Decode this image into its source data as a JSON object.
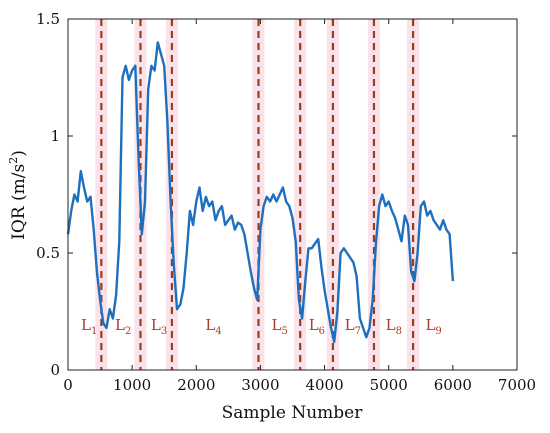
{
  "chart_data": {
    "type": "line",
    "xlabel": "Sample Number",
    "ylabel": "IQR (m/s",
    "ylabel_sup": "2",
    "ylabel_close": ")",
    "xlim": [
      0,
      7000
    ],
    "ylim": [
      0,
      1.5
    ],
    "xticks": [
      0,
      1000,
      2000,
      3000,
      4000,
      5000,
      6000,
      7000
    ],
    "xtick_labels": [
      "0",
      "1000",
      "2000",
      "3000",
      "4000",
      "5000",
      "6000",
      "7000"
    ],
    "yticks": [
      0,
      0.5,
      1,
      1.5
    ],
    "ytick_labels": [
      "0",
      "0.5",
      "1",
      "1.5"
    ],
    "grid": false,
    "line_color": "#1f6fbf",
    "divider_color": "#9e3b1c",
    "divider_band_color": "#f6d6e0",
    "label_color": "#b23a2a",
    "dividers": [
      520,
      1130,
      1620,
      2970,
      3620,
      4130,
      4770,
      5380
    ],
    "segment_labels": [
      {
        "text": "L",
        "sub": "1",
        "x": 330
      },
      {
        "text": "L",
        "sub": "2",
        "x": 860
      },
      {
        "text": "L",
        "sub": "3",
        "x": 1420
      },
      {
        "text": "L",
        "sub": "4",
        "x": 2270
      },
      {
        "text": "L",
        "sub": "5",
        "x": 3300
      },
      {
        "text": "L",
        "sub": "6",
        "x": 3880
      },
      {
        "text": "L",
        "sub": "7",
        "x": 4440
      },
      {
        "text": "L",
        "sub": "8",
        "x": 5080
      },
      {
        "text": "L",
        "sub": "9",
        "x": 5700
      }
    ],
    "segment_label_y": 0.17,
    "series": [
      {
        "x": [
          0,
          50,
          100,
          150,
          200,
          250,
          300,
          350,
          400,
          450,
          500,
          550,
          600,
          650,
          700,
          750,
          800,
          850,
          900,
          950,
          1000,
          1050,
          1100,
          1150,
          1200,
          1250,
          1300,
          1350,
          1400,
          1450,
          1500,
          1550,
          1600,
          1650,
          1700,
          1750,
          1800,
          1850,
          1900,
          1950,
          2000,
          2050,
          2100,
          2150,
          2200,
          2250,
          2300,
          2350,
          2400,
          2450,
          2500,
          2550,
          2600,
          2650,
          2700,
          2750,
          2800,
          2850,
          2900,
          2950,
          3000,
          3050,
          3100,
          3150,
          3200,
          3250,
          3300,
          3350,
          3400,
          3450,
          3500,
          3550,
          3600,
          3650,
          3700,
          3750,
          3800,
          3850,
          3900,
          3950,
          4000,
          4050,
          4100,
          4150,
          4200,
          4250,
          4300,
          4350,
          4400,
          4450,
          4500,
          4550,
          4600,
          4650,
          4700,
          4750,
          4800,
          4850,
          4900,
          4950,
          5000,
          5050,
          5100,
          5150,
          5200,
          5250,
          5300,
          5350,
          5400,
          5450,
          5500,
          5550,
          5600,
          5650,
          5700,
          5750,
          5800,
          5850,
          5900,
          5950,
          6000
        ],
        "y": [
          0.58,
          0.68,
          0.75,
          0.72,
          0.85,
          0.78,
          0.72,
          0.74,
          0.6,
          0.42,
          0.3,
          0.2,
          0.18,
          0.26,
          0.22,
          0.32,
          0.55,
          1.25,
          1.3,
          1.24,
          1.28,
          1.3,
          0.9,
          0.58,
          0.72,
          1.2,
          1.3,
          1.28,
          1.4,
          1.35,
          1.3,
          1.06,
          0.72,
          0.45,
          0.26,
          0.28,
          0.35,
          0.5,
          0.68,
          0.62,
          0.72,
          0.78,
          0.68,
          0.74,
          0.7,
          0.72,
          0.64,
          0.68,
          0.7,
          0.62,
          0.64,
          0.66,
          0.6,
          0.63,
          0.62,
          0.58,
          0.5,
          0.42,
          0.35,
          0.3,
          0.6,
          0.7,
          0.74,
          0.72,
          0.75,
          0.72,
          0.75,
          0.78,
          0.72,
          0.7,
          0.65,
          0.55,
          0.3,
          0.22,
          0.38,
          0.52,
          0.52,
          0.54,
          0.56,
          0.44,
          0.34,
          0.26,
          0.18,
          0.12,
          0.25,
          0.5,
          0.52,
          0.5,
          0.48,
          0.46,
          0.4,
          0.22,
          0.18,
          0.14,
          0.18,
          0.3,
          0.54,
          0.7,
          0.75,
          0.7,
          0.72,
          0.68,
          0.65,
          0.6,
          0.55,
          0.66,
          0.62,
          0.42,
          0.38,
          0.5,
          0.7,
          0.72,
          0.66,
          0.68,
          0.64,
          0.62,
          0.6,
          0.64,
          0.6,
          0.58,
          0.38
        ]
      }
    ]
  }
}
